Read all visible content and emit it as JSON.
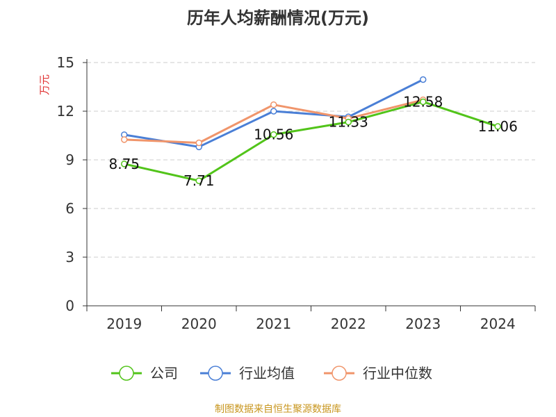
{
  "chart_data": {
    "type": "line",
    "title": "历年人均薪酬情况(万元)",
    "ylabel": "万元",
    "xlabel": "",
    "categories": [
      "2019",
      "2020",
      "2021",
      "2022",
      "2023",
      "2024"
    ],
    "ylim": [
      0,
      15
    ],
    "yticks": [
      0,
      3,
      6,
      9,
      12,
      15
    ],
    "grid": "horizontal dashed",
    "legend_position": "bottom",
    "series": [
      {
        "name": "公司",
        "color": "#52c41a",
        "values": [
          8.75,
          7.71,
          10.56,
          11.33,
          12.58,
          11.06
        ],
        "labels": [
          "8.75",
          "7.71",
          "10.56",
          "11.33",
          "12.58",
          "11.06"
        ]
      },
      {
        "name": "行业均值",
        "color": "#4a7fd6",
        "values": [
          10.55,
          9.8,
          12.0,
          11.65,
          13.95,
          null
        ]
      },
      {
        "name": "行业中位数",
        "color": "#f0956b",
        "values": [
          10.25,
          10.05,
          12.4,
          11.55,
          12.7,
          null
        ]
      }
    ]
  },
  "colors": {
    "title": "#333333",
    "axis": "#333333",
    "grid": "#cccccc",
    "ylabel": "#e03030",
    "source": "#c8961e"
  },
  "source_note": "制图数据来自恒生聚源数据库"
}
